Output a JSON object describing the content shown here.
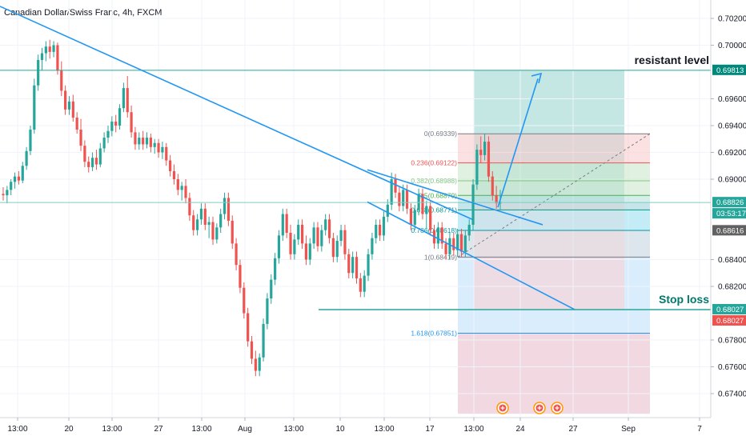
{
  "header": {
    "title": "Canadian Dollar/Swiss Franc, 4h, FXCM"
  },
  "colors": {
    "up": "#26a69a",
    "down": "#ef5350",
    "trend": "#2196f3",
    "hline": "#26a69a",
    "profit_zone": "#b2dfdb",
    "loss_zone": "#ffcdd2",
    "fib_blue": "#bbdefb"
  },
  "chart_data": {
    "type": "candlestick",
    "y_axis": {
      "ylim": [
        0.6725,
        0.703
      ],
      "ticks": [
        "0.70200",
        "0.70000",
        "0.69600",
        "0.69400",
        "0.69200",
        "0.69000",
        "0.68400",
        "0.68200",
        "0.67800",
        "0.67600",
        "0.67400"
      ]
    },
    "x_axis": {
      "ticks": [
        "13:00",
        "20",
        "13:00",
        "27",
        "13:00",
        "Aug",
        "13:00",
        "10",
        "13:00",
        "17",
        "13:00",
        "24",
        "27",
        "Sep",
        "7"
      ]
    },
    "price_labels": [
      {
        "text": "0.69813",
        "price": 0.69813,
        "bg": "#e0f2f1",
        "fg": "#00897b"
      },
      {
        "text": "0.69813",
        "price": 0.69813,
        "bg": "#00897b",
        "fg": "#ffffff"
      },
      {
        "text": "0.68826",
        "price": 0.68826,
        "bg": "#26a69a",
        "fg": "#ffffff"
      },
      {
        "text": "03:53:17",
        "price": 0.68826,
        "bg": "#26a69a",
        "fg": "#ffffff",
        "below": true
      },
      {
        "text": "0.68616",
        "price": 0.68616,
        "bg": "#616161",
        "fg": "#ffffff"
      },
      {
        "text": "0.68027",
        "price": 0.68027,
        "bg": "#26a69a",
        "fg": "#ffffff"
      },
      {
        "text": "0.68027",
        "price": 0.68027,
        "bg": "#ef5350",
        "fg": "#ffffff",
        "below": true
      }
    ],
    "fib_levels": [
      {
        "label": "0(0.69339)",
        "price": 0.69339,
        "color": "#787b86"
      },
      {
        "label": "0.236(0.69122)",
        "price": 0.69122,
        "color": "#ef5350"
      },
      {
        "label": "0.382(0.68988)",
        "price": 0.68988,
        "color": "#81c784"
      },
      {
        "label": "0.5(0.68879)",
        "price": 0.68879,
        "color": "#4caf50"
      },
      {
        "label": "0.618(0.68771)",
        "price": 0.68771,
        "color": "#089981"
      },
      {
        "label": "0.786(0.68618)",
        "price": 0.68618,
        "color": "#0097a7"
      },
      {
        "label": "1(0.68419)",
        "price": 0.68419,
        "color": "#787b86"
      },
      {
        "label": "1.618(0.67851)",
        "price": 0.67851,
        "color": "#2196f3"
      }
    ],
    "annotations": [
      {
        "text": "resistant level",
        "price": 0.69813
      },
      {
        "text": "Stop loss",
        "price": 0.68027
      }
    ],
    "candles": [
      [
        0.6889,
        0.6894,
        0.6884,
        0.6888
      ],
      [
        0.6888,
        0.6895,
        0.6882,
        0.6892
      ],
      [
        0.6892,
        0.69,
        0.6888,
        0.6898
      ],
      [
        0.6898,
        0.6905,
        0.6893,
        0.6902
      ],
      [
        0.6902,
        0.6906,
        0.6896,
        0.6899
      ],
      [
        0.6899,
        0.6913,
        0.6897,
        0.691
      ],
      [
        0.691,
        0.6924,
        0.6907,
        0.6921
      ],
      [
        0.6921,
        0.694,
        0.6918,
        0.6937
      ],
      [
        0.6937,
        0.6975,
        0.6934,
        0.697
      ],
      [
        0.697,
        0.6993,
        0.6966,
        0.6989
      ],
      [
        0.6989,
        0.6998,
        0.6981,
        0.6994
      ],
      [
        0.6994,
        0.7003,
        0.6988,
        0.6999
      ],
      [
        0.6999,
        0.7004,
        0.699,
        0.6995
      ],
      [
        0.6995,
        0.7003,
        0.6991,
        0.7
      ],
      [
        0.7,
        0.7002,
        0.6978,
        0.6981
      ],
      [
        0.6981,
        0.6988,
        0.6962,
        0.6966
      ],
      [
        0.6966,
        0.697,
        0.6948,
        0.6952
      ],
      [
        0.6952,
        0.6962,
        0.6948,
        0.6958
      ],
      [
        0.6958,
        0.6963,
        0.6943,
        0.6946
      ],
      [
        0.6946,
        0.695,
        0.6934,
        0.6937
      ],
      [
        0.6937,
        0.6945,
        0.6921,
        0.6925
      ],
      [
        0.6925,
        0.6929,
        0.6909,
        0.6913
      ],
      [
        0.6913,
        0.6917,
        0.6905,
        0.6909
      ],
      [
        0.6909,
        0.692,
        0.6906,
        0.6916
      ],
      [
        0.6916,
        0.6922,
        0.6907,
        0.6911
      ],
      [
        0.6911,
        0.6927,
        0.6909,
        0.6923
      ],
      [
        0.6923,
        0.6935,
        0.692,
        0.6931
      ],
      [
        0.6931,
        0.694,
        0.6927,
        0.6936
      ],
      [
        0.6936,
        0.6947,
        0.6932,
        0.6943
      ],
      [
        0.6943,
        0.6948,
        0.6935,
        0.694
      ],
      [
        0.694,
        0.6956,
        0.6937,
        0.6953
      ],
      [
        0.6953,
        0.6972,
        0.695,
        0.6968
      ],
      [
        0.6968,
        0.6977,
        0.6946,
        0.695
      ],
      [
        0.695,
        0.6955,
        0.6931,
        0.6935
      ],
      [
        0.6935,
        0.6939,
        0.6922,
        0.6926
      ],
      [
        0.6926,
        0.6935,
        0.6922,
        0.6931
      ],
      [
        0.6931,
        0.6936,
        0.6922,
        0.6926
      ],
      [
        0.6926,
        0.6935,
        0.6923,
        0.6931
      ],
      [
        0.6931,
        0.6934,
        0.692,
        0.6924
      ],
      [
        0.6924,
        0.693,
        0.6919,
        0.6927
      ],
      [
        0.6927,
        0.693,
        0.6916,
        0.692
      ],
      [
        0.692,
        0.6928,
        0.6915,
        0.6924
      ],
      [
        0.6924,
        0.6927,
        0.691,
        0.6914
      ],
      [
        0.6914,
        0.6918,
        0.6902,
        0.6906
      ],
      [
        0.6906,
        0.6911,
        0.6896,
        0.69
      ],
      [
        0.69,
        0.6904,
        0.6888,
        0.6892
      ],
      [
        0.6892,
        0.6898,
        0.6884,
        0.6895
      ],
      [
        0.6895,
        0.69,
        0.6882,
        0.6886
      ],
      [
        0.6886,
        0.689,
        0.6869,
        0.6873
      ],
      [
        0.6873,
        0.6877,
        0.6858,
        0.6862
      ],
      [
        0.6862,
        0.6874,
        0.6858,
        0.687
      ],
      [
        0.687,
        0.6882,
        0.6866,
        0.6878
      ],
      [
        0.6878,
        0.6882,
        0.6862,
        0.6866
      ],
      [
        0.6866,
        0.6872,
        0.6856,
        0.6868
      ],
      [
        0.6868,
        0.6872,
        0.6851,
        0.6855
      ],
      [
        0.6855,
        0.6867,
        0.6852,
        0.6864
      ],
      [
        0.6864,
        0.6878,
        0.686,
        0.6874
      ],
      [
        0.6874,
        0.689,
        0.687,
        0.6886
      ],
      [
        0.6886,
        0.689,
        0.6865,
        0.6869
      ],
      [
        0.6869,
        0.6873,
        0.6848,
        0.6852
      ],
      [
        0.6852,
        0.6856,
        0.6832,
        0.6836
      ],
      [
        0.6836,
        0.684,
        0.6815,
        0.6819
      ],
      [
        0.6819,
        0.6823,
        0.6796,
        0.68
      ],
      [
        0.68,
        0.6804,
        0.6775,
        0.6779
      ],
      [
        0.6779,
        0.6783,
        0.6762,
        0.6766
      ],
      [
        0.6766,
        0.6772,
        0.6753,
        0.6757
      ],
      [
        0.6757,
        0.677,
        0.6753,
        0.6767
      ],
      [
        0.6767,
        0.6796,
        0.6764,
        0.6792
      ],
      [
        0.6792,
        0.6815,
        0.6788,
        0.6811
      ],
      [
        0.6811,
        0.6829,
        0.6807,
        0.6825
      ],
      [
        0.6825,
        0.6845,
        0.6821,
        0.6841
      ],
      [
        0.6841,
        0.6862,
        0.6837,
        0.6858
      ],
      [
        0.6858,
        0.6878,
        0.6854,
        0.6874
      ],
      [
        0.6874,
        0.6878,
        0.6856,
        0.686
      ],
      [
        0.686,
        0.6866,
        0.684,
        0.6844
      ],
      [
        0.6844,
        0.6859,
        0.684,
        0.6855
      ],
      [
        0.6855,
        0.687,
        0.6851,
        0.6866
      ],
      [
        0.6866,
        0.687,
        0.6848,
        0.6852
      ],
      [
        0.6852,
        0.6858,
        0.6836,
        0.684
      ],
      [
        0.684,
        0.6856,
        0.6836,
        0.6852
      ],
      [
        0.6852,
        0.6868,
        0.6848,
        0.6864
      ],
      [
        0.6864,
        0.6868,
        0.6846,
        0.685
      ],
      [
        0.685,
        0.6866,
        0.6846,
        0.6862
      ],
      [
        0.6862,
        0.6874,
        0.6858,
        0.687
      ],
      [
        0.687,
        0.6874,
        0.6852,
        0.6856
      ],
      [
        0.6856,
        0.686,
        0.6838,
        0.6842
      ],
      [
        0.6842,
        0.6858,
        0.6838,
        0.6854
      ],
      [
        0.6854,
        0.6866,
        0.685,
        0.6862
      ],
      [
        0.6862,
        0.6866,
        0.684,
        0.6844
      ],
      [
        0.6844,
        0.6848,
        0.6826,
        0.683
      ],
      [
        0.683,
        0.6846,
        0.6826,
        0.6842
      ],
      [
        0.6842,
        0.6846,
        0.6822,
        0.6826
      ],
      [
        0.6826,
        0.683,
        0.6812,
        0.6816
      ],
      [
        0.6816,
        0.6832,
        0.6812,
        0.6828
      ],
      [
        0.6828,
        0.6848,
        0.6824,
        0.6844
      ],
      [
        0.6844,
        0.686,
        0.684,
        0.6856
      ],
      [
        0.6856,
        0.687,
        0.6852,
        0.6866
      ],
      [
        0.6866,
        0.687,
        0.6854,
        0.6858
      ],
      [
        0.6858,
        0.6876,
        0.6854,
        0.6872
      ],
      [
        0.6872,
        0.6885,
        0.6868,
        0.6881
      ],
      [
        0.6881,
        0.6905,
        0.6877,
        0.69
      ],
      [
        0.69,
        0.6904,
        0.6886,
        0.689
      ],
      [
        0.689,
        0.6894,
        0.6876,
        0.688
      ],
      [
        0.688,
        0.6896,
        0.6876,
        0.6892
      ],
      [
        0.6892,
        0.6896,
        0.6874,
        0.6878
      ],
      [
        0.6878,
        0.6882,
        0.6862,
        0.6866
      ],
      [
        0.6866,
        0.6881,
        0.6862,
        0.6877
      ],
      [
        0.6877,
        0.6893,
        0.6873,
        0.6889
      ],
      [
        0.6889,
        0.6893,
        0.687,
        0.6874
      ],
      [
        0.6874,
        0.6884,
        0.6863,
        0.688
      ],
      [
        0.688,
        0.6884,
        0.6858,
        0.6862
      ],
      [
        0.6862,
        0.6866,
        0.6848,
        0.6852
      ],
      [
        0.6852,
        0.6868,
        0.6848,
        0.6864
      ],
      [
        0.6864,
        0.6868,
        0.6848,
        0.6852
      ],
      [
        0.6852,
        0.6856,
        0.684,
        0.6844
      ],
      [
        0.6844,
        0.686,
        0.684,
        0.6856
      ],
      [
        0.6856,
        0.686,
        0.6843,
        0.6847
      ],
      [
        0.6847,
        0.6863,
        0.6842,
        0.6859
      ],
      [
        0.6859,
        0.6863,
        0.6842,
        0.6846
      ],
      [
        0.6846,
        0.6862,
        0.6842,
        0.6858
      ],
      [
        0.6858,
        0.687,
        0.6854,
        0.6866
      ],
      [
        0.6866,
        0.69,
        0.6862,
        0.6896
      ],
      [
        0.6896,
        0.6926,
        0.6892,
        0.6922
      ],
      [
        0.6922,
        0.6932,
        0.6912,
        0.6918
      ],
      [
        0.6918,
        0.6934,
        0.6914,
        0.6928
      ],
      [
        0.6928,
        0.6932,
        0.6898,
        0.6902
      ],
      [
        0.6902,
        0.6906,
        0.6884,
        0.6888
      ],
      [
        0.6888,
        0.6895,
        0.6878,
        0.6882
      ],
      [
        0.6882,
        0.6892,
        0.6877,
        0.6883
      ]
    ]
  }
}
